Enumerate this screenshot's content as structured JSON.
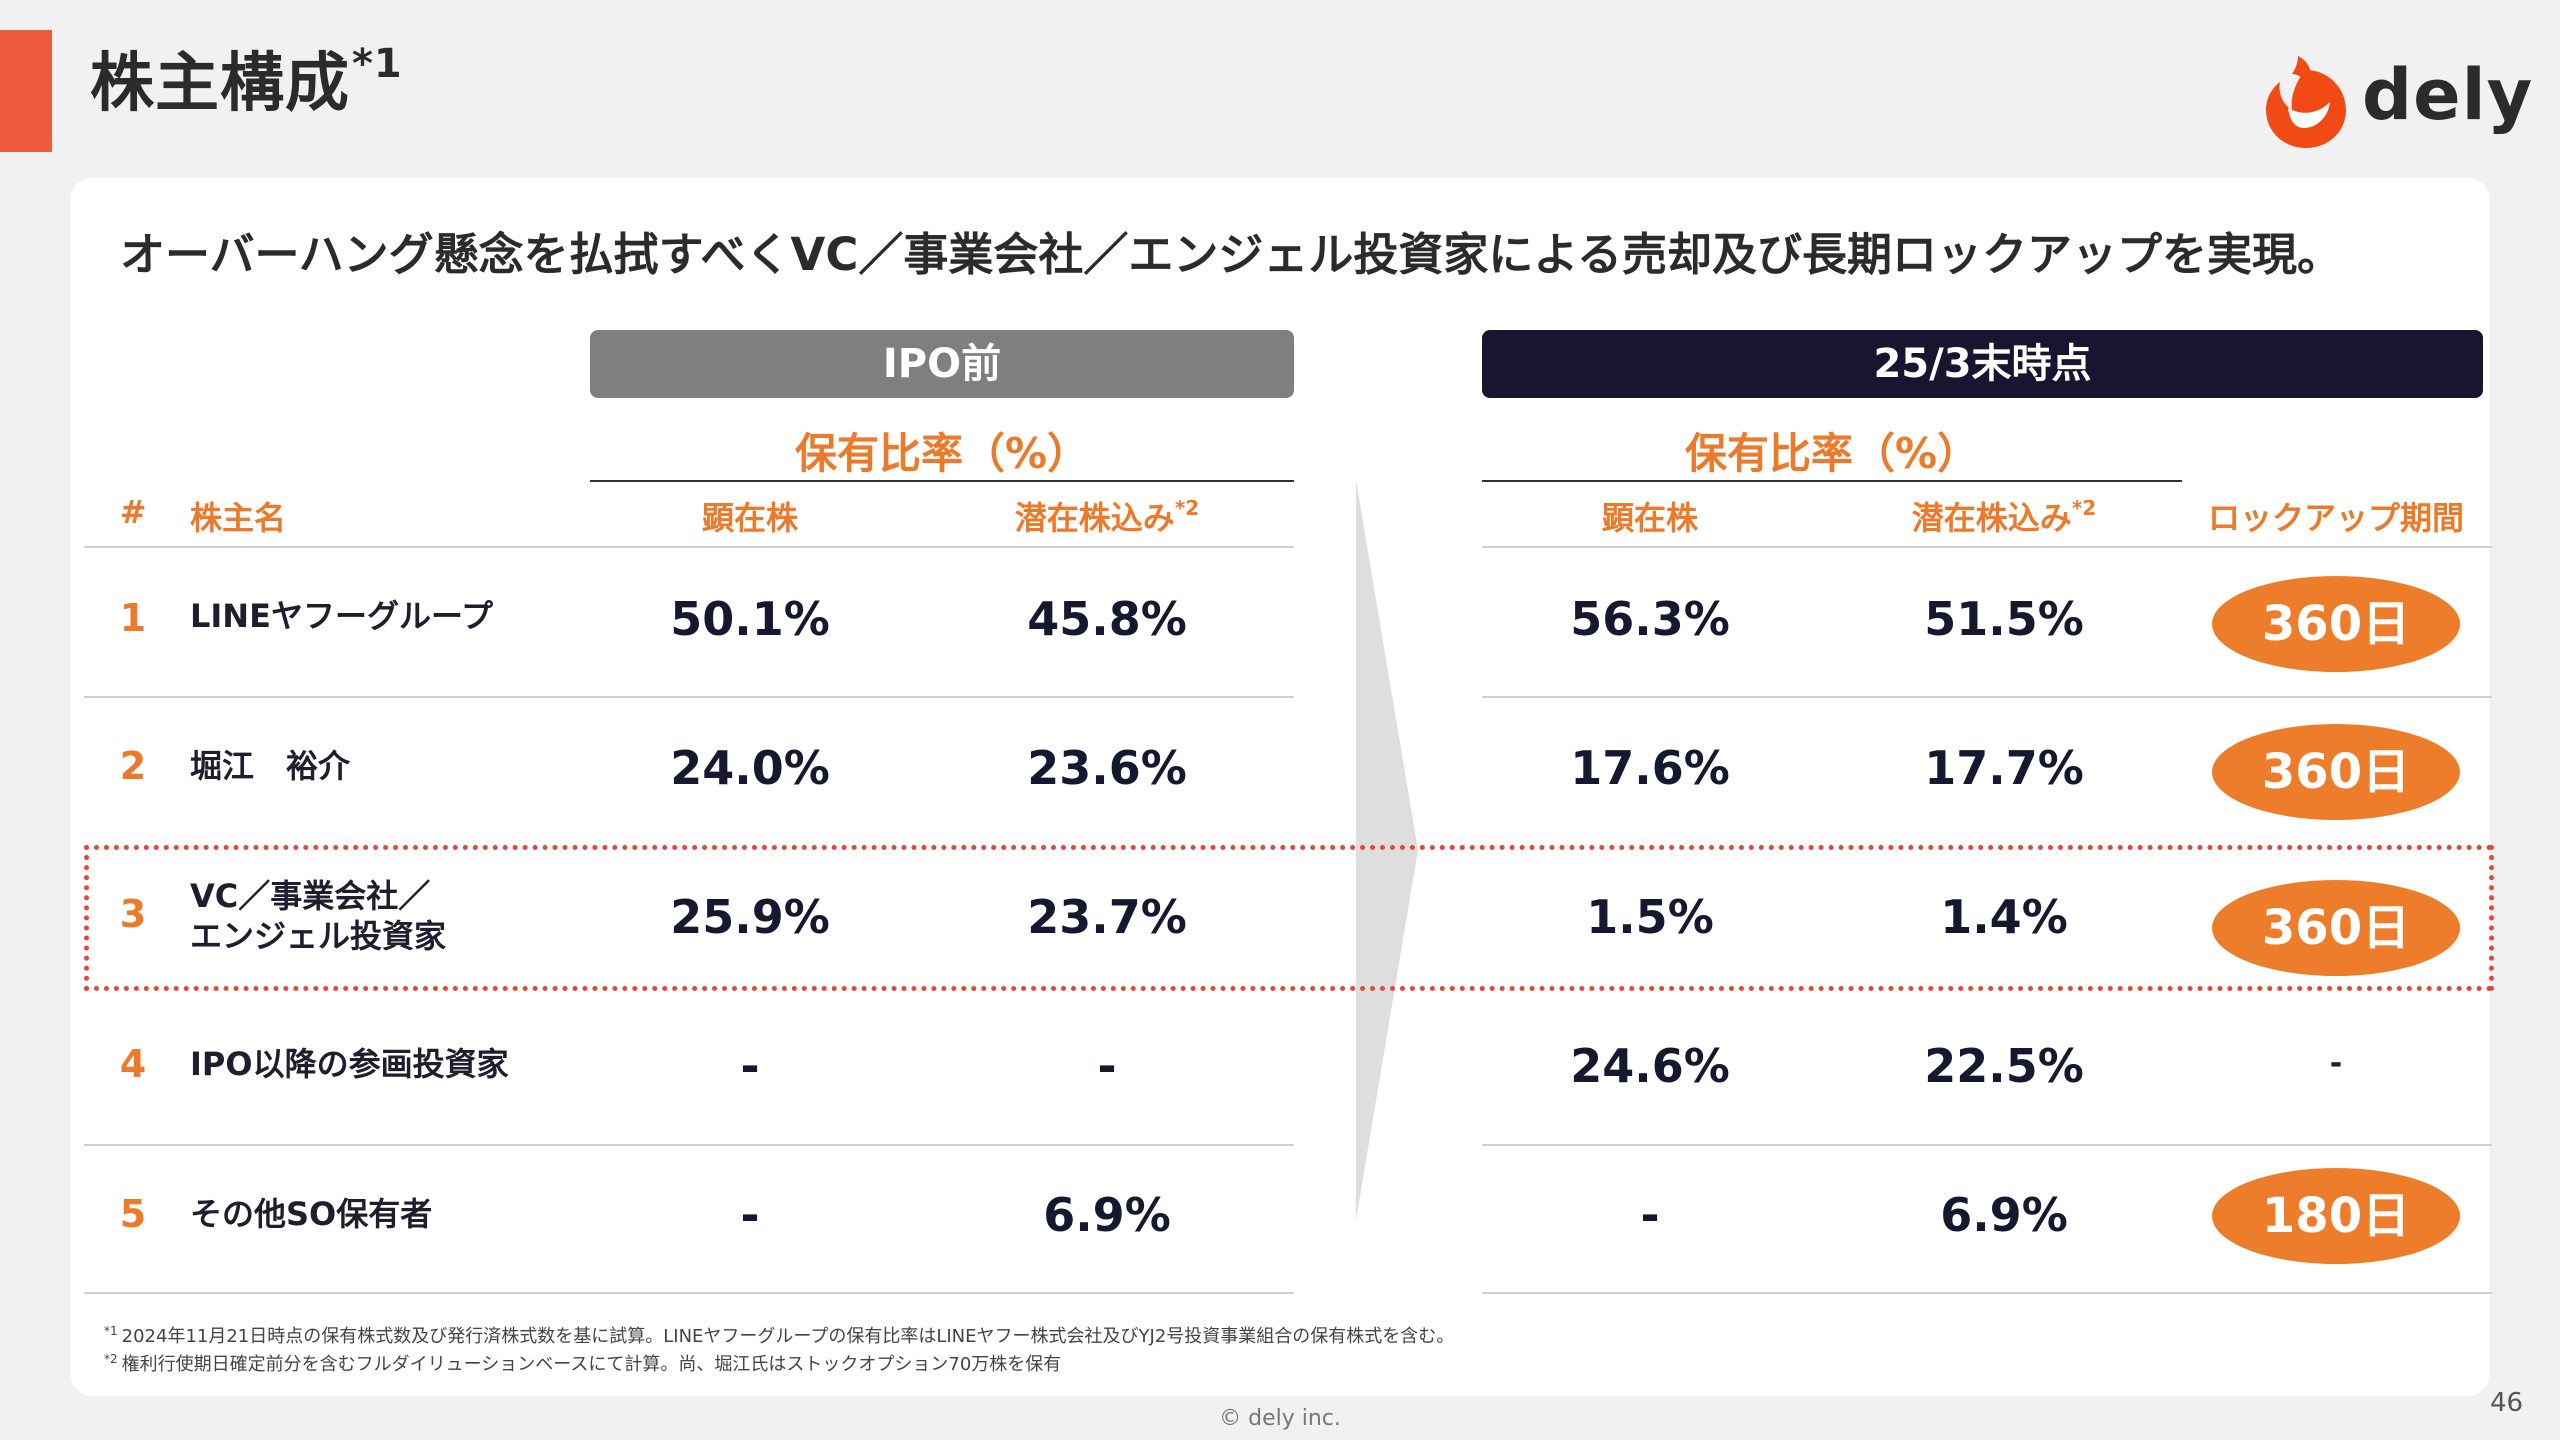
{
  "slide": {
    "title": "株主構成",
    "title_sup": "*1",
    "brand": "dely",
    "headline": "オーバーハング懸念を払拭すべくVC／事業会社／エンジェル投資家による売却及び長期ロックアップを実現。",
    "page_number": "46",
    "copyright": "© dely inc."
  },
  "colors": {
    "accent": "#f05a3c",
    "orange": "#ec7a2a",
    "ipo_header": "#7f7f7f",
    "now_header": "#171530"
  },
  "table": {
    "group_ipo": "IPO前",
    "group_now": "25/3末時点",
    "ratio_label": "保有比率（%）",
    "head_num": "#",
    "head_name": "株主名",
    "head_actual": "顕在株",
    "head_potential": "潜在株込み",
    "head_potential_sup": "*2",
    "head_lockup": "ロックアップ期間",
    "rows": [
      {
        "num": "1",
        "name": "LINEヤフーグループ",
        "name2": "",
        "ipo_actual": "50.1%",
        "ipo_potential": "45.8%",
        "now_actual": "56.3%",
        "now_potential": "51.5%",
        "lockup": "360日"
      },
      {
        "num": "2",
        "name": "堀江　裕介",
        "name2": "",
        "ipo_actual": "24.0%",
        "ipo_potential": "23.6%",
        "now_actual": "17.6%",
        "now_potential": "17.7%",
        "lockup": "360日"
      },
      {
        "num": "3",
        "name": "VC／事業会社／",
        "name2": "エンジェル投資家",
        "ipo_actual": "25.9%",
        "ipo_potential": "23.7%",
        "now_actual": "1.5%",
        "now_potential": "1.4%",
        "lockup": "360日"
      },
      {
        "num": "4",
        "name": "IPO以降の参画投資家",
        "name2": "",
        "ipo_actual": "-",
        "ipo_potential": "-",
        "now_actual": "24.6%",
        "now_potential": "22.5%",
        "lockup": "-"
      },
      {
        "num": "5",
        "name": "その他SO保有者",
        "name2": "",
        "ipo_actual": "-",
        "ipo_potential": "6.9%",
        "now_actual": "-",
        "now_potential": "6.9%",
        "lockup": "180日"
      }
    ]
  },
  "footnotes": [
    {
      "mark": "*1",
      "text": "2024年11月21日時点の保有株式数及び発行済株式数を基に試算。LINEヤフーグループの保有比率はLINEヤフー株式会社及びYJ2号投資事業組合の保有株式を含む。"
    },
    {
      "mark": "*2",
      "text": "権利行使期日確定前分を含むフルダイリューションベースにて計算。尚、堀江氏はストックオプション70万株を保有"
    }
  ]
}
